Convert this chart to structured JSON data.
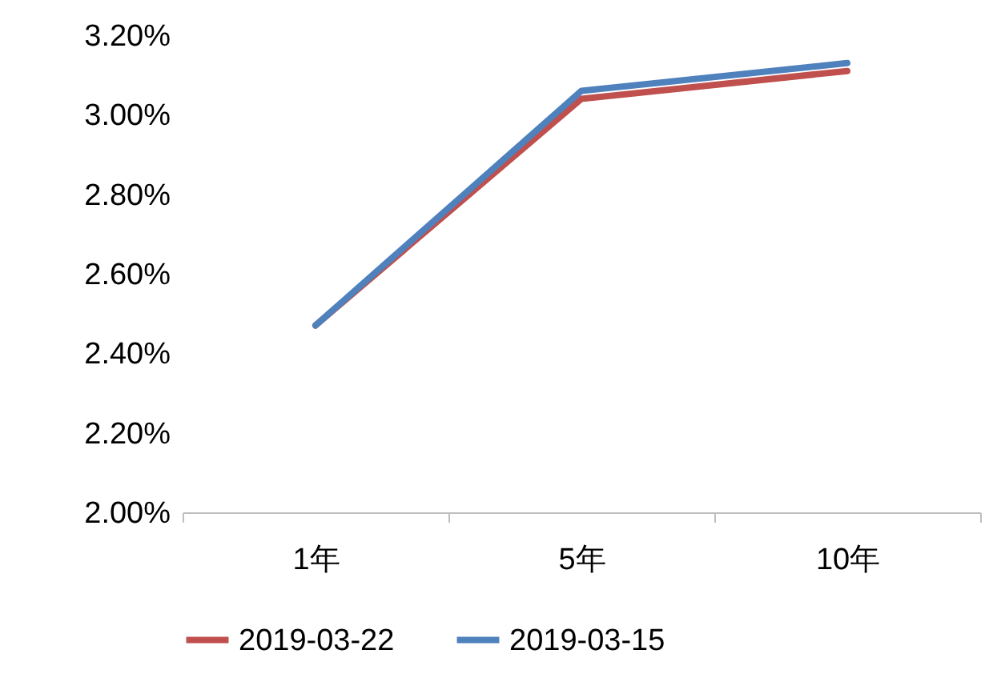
{
  "chart_data": {
    "type": "line",
    "categories": [
      "1年",
      "5年",
      "10年"
    ],
    "series": [
      {
        "name": "2019-03-22",
        "color": "#c0504d",
        "values": [
          2.47,
          3.04,
          3.11
        ]
      },
      {
        "name": "2019-03-15",
        "color": "#4f81bd",
        "values": [
          2.47,
          3.06,
          3.13
        ]
      }
    ],
    "ylim": [
      2.0,
      3.2
    ],
    "yticks": [
      {
        "value": 2.0,
        "label": "2.00%"
      },
      {
        "value": 2.2,
        "label": "2.20%"
      },
      {
        "value": 2.4,
        "label": "2.40%"
      },
      {
        "value": 2.6,
        "label": "2.60%"
      },
      {
        "value": 2.8,
        "label": "2.80%"
      },
      {
        "value": 3.0,
        "label": "3.00%"
      },
      {
        "value": 3.2,
        "label": "3.20%"
      }
    ],
    "grid": false,
    "legend": "bottom",
    "marker": "none",
    "line_style": "solid"
  }
}
